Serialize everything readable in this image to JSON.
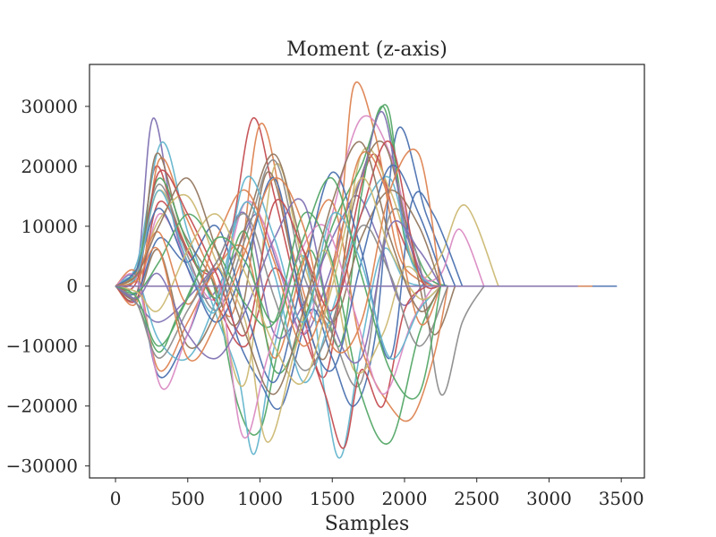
{
  "chart_data": {
    "type": "line",
    "title": "Moment (z-axis)",
    "xlabel": "Samples",
    "ylabel": "",
    "xlim": [
      -180,
      3660
    ],
    "ylim": [
      -32000,
      37000
    ],
    "xticks": [
      0,
      500,
      1000,
      1500,
      2000,
      2500,
      3000,
      3500
    ],
    "yticks": [
      -30000,
      -20000,
      -10000,
      0,
      10000,
      20000,
      30000
    ],
    "xtick_labels": [
      "0",
      "500",
      "1000",
      "1500",
      "2000",
      "2500",
      "3000",
      "3500"
    ],
    "ytick_labels": [
      "−30000",
      "−20000",
      "−10000",
      "0",
      "10000",
      "20000",
      "30000"
    ],
    "grid": false,
    "legend": "none",
    "palette": [
      "#4c72b0",
      "#dd8452",
      "#55a868",
      "#c44e52",
      "#8172b3",
      "#937860",
      "#da8bc3",
      "#8c8c8c",
      "#ccb974",
      "#64b5cd"
    ],
    "series": [
      {
        "color": "#8172b3",
        "x": [
          0,
          150,
          260,
          420,
          620,
          820,
          980,
          1130,
          1300,
          1480,
          1650,
          1820,
          1980,
          2150,
          2250
        ],
        "y": [
          0,
          3000,
          28000,
          9000,
          -2000,
          5000,
          12000,
          3000,
          -8000,
          2000,
          15000,
          8000,
          -3000,
          800,
          0
        ]
      },
      {
        "color": "#c44e52",
        "x": [
          0,
          150,
          280,
          450,
          650,
          800,
          950,
          1100,
          1300,
          1450,
          1600,
          1780,
          1950,
          2100,
          2200
        ],
        "y": [
          0,
          2000,
          20000,
          8000,
          2000,
          9000,
          28000,
          15000,
          -5000,
          -15000,
          5000,
          22000,
          10000,
          2000,
          0
        ]
      },
      {
        "color": "#dd8452",
        "x": [
          0,
          160,
          300,
          480,
          650,
          820,
          1000,
          1200,
          1400,
          1550,
          1650,
          1800,
          1950,
          2100,
          2250
        ],
        "y": [
          0,
          -2000,
          21000,
          12000,
          3000,
          -4000,
          27000,
          8000,
          -6000,
          10000,
          33500,
          25000,
          6000,
          1000,
          0
        ]
      },
      {
        "color": "#55a868",
        "x": [
          0,
          150,
          300,
          450,
          650,
          850,
          1000,
          1150,
          1350,
          1550,
          1700,
          1850,
          2000,
          2150,
          2300
        ],
        "y": [
          0,
          -3000,
          -11000,
          -4000,
          2000,
          -20000,
          -24000,
          -8000,
          6000,
          -10000,
          15000,
          30000,
          12000,
          2000,
          0
        ]
      },
      {
        "color": "#64b5cd",
        "x": [
          0,
          150,
          320,
          500,
          700,
          850,
          960,
          1100,
          1300,
          1450,
          1560,
          1700,
          1850,
          2000,
          2150
        ],
        "y": [
          0,
          4000,
          24000,
          9000,
          -5000,
          -15000,
          -28000,
          -10000,
          5000,
          -18000,
          -28500,
          -10000,
          6000,
          1000,
          0
        ]
      },
      {
        "color": "#4c72b0",
        "x": [
          0,
          150,
          300,
          500,
          700,
          850,
          1000,
          1150,
          1350,
          1500,
          1650,
          1800,
          1950,
          2150,
          2350
        ],
        "y": [
          0,
          1000,
          -15000,
          -8000,
          3000,
          -9000,
          -16000,
          -20000,
          -4000,
          -12000,
          -20000,
          -8000,
          26000,
          12000,
          0
        ]
      },
      {
        "color": "#ccb974",
        "x": [
          0,
          150,
          300,
          500,
          700,
          900,
          1100,
          1300,
          1500,
          1700,
          1900,
          2100,
          2250,
          2420,
          2650
        ],
        "y": [
          0,
          2000,
          16000,
          6000,
          -3000,
          -16000,
          20000,
          4000,
          -6000,
          22000,
          16000,
          2000,
          5000,
          13500,
          0
        ]
      },
      {
        "color": "#da8bc3",
        "x": [
          0,
          150,
          300,
          500,
          700,
          900,
          1100,
          1300,
          1500,
          1700,
          1900,
          2100,
          2250,
          2380,
          2550
        ],
        "y": [
          0,
          -2000,
          12000,
          4000,
          -2000,
          14000,
          6000,
          -8000,
          12000,
          28000,
          22000,
          3000,
          2000,
          9500,
          0
        ]
      },
      {
        "color": "#8c8c8c",
        "x": [
          0,
          150,
          300,
          500,
          700,
          900,
          1100,
          1300,
          1500,
          1700,
          1900,
          2100,
          2250,
          2400,
          2550
        ],
        "y": [
          0,
          3000,
          17000,
          5000,
          -4000,
          8000,
          21000,
          2000,
          -8000,
          -16000,
          12000,
          4000,
          -18000,
          -6000,
          0
        ]
      },
      {
        "color": "#937860",
        "x": [
          0,
          150,
          280,
          450,
          650,
          850,
          1050,
          1250,
          1450,
          1650,
          1850,
          2050,
          2200,
          2350
        ],
        "y": [
          0,
          -1000,
          22000,
          10000,
          2000,
          -6000,
          19000,
          2000,
          -12000,
          14000,
          24000,
          6000,
          -8000,
          0
        ]
      },
      {
        "color": "#dd8452",
        "x": [
          0,
          150,
          300,
          500,
          700,
          900,
          1100,
          1300,
          1500,
          1700,
          1900,
          2050,
          2200,
          2300
        ],
        "y": [
          0,
          2000,
          -14000,
          -6000,
          3000,
          6000,
          -12000,
          4000,
          14000,
          -10000,
          -20000,
          -22000,
          -12000,
          0
        ]
      },
      {
        "color": "#c44e52",
        "x": [
          0,
          150,
          300,
          500,
          700,
          900,
          1100,
          1300,
          1450,
          1580,
          1700,
          1850,
          2000,
          2150
        ],
        "y": [
          0,
          -2000,
          14000,
          6000,
          -3000,
          -10000,
          3000,
          -8000,
          -18000,
          -27000,
          -14000,
          -20000,
          -4000,
          0
        ]
      },
      {
        "color": "#55a868",
        "x": [
          0,
          150,
          300,
          500,
          700,
          900,
          1100,
          1300,
          1500,
          1700,
          1880,
          2000,
          2150
        ],
        "y": [
          0,
          3000,
          18000,
          7000,
          -2000,
          9000,
          -14000,
          -6000,
          10000,
          20000,
          30000,
          8000,
          0
        ]
      },
      {
        "color": "#4c72b0",
        "x": [
          0,
          150,
          300,
          500,
          700,
          900,
          1100,
          1300,
          1500,
          1700,
          1900,
          2050,
          2200,
          2400
        ],
        "y": [
          0,
          -1000,
          8000,
          4000,
          10000,
          -4000,
          -16000,
          2000,
          19000,
          6000,
          -12000,
          14000,
          12000,
          0
        ]
      },
      {
        "color": "#8172b3",
        "x": [
          0,
          150,
          300,
          500,
          700,
          900,
          1100,
          1300,
          1500,
          1700,
          1850,
          2000,
          2150
        ],
        "y": [
          0,
          -3000,
          -6000,
          -2000,
          4000,
          12000,
          -8000,
          -3000,
          8000,
          18000,
          29000,
          10000,
          0
        ]
      },
      {
        "color": "#64b5cd",
        "x": [
          0,
          150,
          300,
          500,
          700,
          900,
          1100,
          1300,
          1500,
          1700,
          1900,
          2050,
          2200
        ],
        "y": [
          0,
          1000,
          -9000,
          -12000,
          -2000,
          14000,
          2000,
          -16000,
          -4000,
          12000,
          18000,
          4000,
          0
        ]
      },
      {
        "color": "#ccb974",
        "x": [
          0,
          150,
          300,
          500,
          700,
          900,
          1050,
          1250,
          1450,
          1650,
          1850,
          2000,
          2150
        ],
        "y": [
          0,
          2000,
          11000,
          15000,
          4000,
          -6000,
          -26000,
          -10000,
          6000,
          -14000,
          -8000,
          3000,
          0
        ]
      },
      {
        "color": "#937860",
        "x": [
          0,
          150,
          300,
          500,
          700,
          900,
          1100,
          1300,
          1500,
          1700,
          1900,
          2100,
          2250
        ],
        "y": [
          0,
          -2000,
          6000,
          -10000,
          -4000,
          10000,
          22000,
          6000,
          -6000,
          8000,
          16000,
          10000,
          0
        ]
      },
      {
        "color": "#da8bc3",
        "x": [
          0,
          150,
          320,
          500,
          700,
          880,
          1050,
          1250,
          1450,
          1650,
          1850,
          2050,
          2200
        ],
        "y": [
          0,
          1000,
          -17000,
          -8000,
          2000,
          -25000,
          -12000,
          4000,
          10000,
          -4000,
          -18000,
          -6000,
          0
        ]
      },
      {
        "color": "#4c72b0",
        "x": [
          0,
          150,
          300,
          500,
          700,
          900,
          1100,
          1300,
          1500,
          1700,
          1900,
          2100,
          2280
        ],
        "y": [
          0,
          3000,
          13000,
          3000,
          -6000,
          4000,
          18000,
          -4000,
          -14000,
          4000,
          20000,
          12000,
          0
        ]
      },
      {
        "color": "#55a868",
        "x": [
          0,
          150,
          300,
          500,
          700,
          900,
          1100,
          1300,
          1500,
          1700,
          1900,
          2100,
          2250
        ],
        "y": [
          0,
          -1000,
          4000,
          12000,
          6000,
          -3000,
          -6000,
          12000,
          4000,
          -18000,
          -26000,
          -8000,
          0
        ]
      },
      {
        "color": "#dd8452",
        "x": [
          0,
          150,
          300,
          500,
          700,
          900,
          1100,
          1300,
          1500,
          1700,
          1900,
          2100,
          2250
        ],
        "y": [
          0,
          2000,
          9000,
          -3000,
          8000,
          16000,
          4000,
          -10000,
          2000,
          22000,
          14000,
          -6000,
          0
        ]
      },
      {
        "color": "#8c8c8c",
        "x": [
          0,
          150,
          300,
          500,
          700,
          900,
          1100,
          1300,
          1500,
          1700,
          1900,
          2100,
          2300
        ],
        "y": [
          0,
          -3000,
          -12000,
          -4000,
          4000,
          12000,
          -2000,
          -14000,
          -6000,
          10000,
          2000,
          -10000,
          0
        ]
      },
      {
        "color": "#c44e52",
        "x": [
          0,
          150,
          300,
          500,
          700,
          900,
          1100,
          1300,
          1500,
          1700,
          1900,
          2100,
          2250
        ],
        "y": [
          0,
          1000,
          19000,
          12000,
          2000,
          -8000,
          14000,
          6000,
          -4000,
          12000,
          24000,
          2000,
          0
        ]
      },
      {
        "color": "#8172b3",
        "x": [
          0,
          150,
          300,
          500,
          700,
          900,
          1100,
          1300,
          1500,
          1700,
          1900,
          2100,
          2250
        ],
        "y": [
          0,
          -2000,
          2000,
          -8000,
          -12000,
          -4000,
          8000,
          14000,
          -6000,
          -12000,
          10000,
          6000,
          0
        ]
      },
      {
        "color": "#64b5cd",
        "x": [
          0,
          150,
          300,
          500,
          700,
          900,
          1100,
          1300,
          1500,
          1700,
          1900,
          2100,
          2250
        ],
        "y": [
          0,
          2000,
          16000,
          4000,
          -4000,
          18000,
          8000,
          -6000,
          12000,
          4000,
          -12000,
          -4000,
          0
        ]
      },
      {
        "color": "#ccb974",
        "x": [
          0,
          150,
          300,
          500,
          700,
          900,
          1100,
          1300,
          1500,
          1700,
          1900,
          2100,
          2250
        ],
        "y": [
          0,
          -1000,
          -4000,
          6000,
          12000,
          2000,
          -10000,
          -16000,
          0,
          18000,
          6000,
          -2000,
          0
        ]
      },
      {
        "color": "#937860",
        "x": [
          0,
          150,
          300,
          500,
          700,
          900,
          1100,
          1300,
          1500,
          1700,
          1900,
          2100,
          2250
        ],
        "y": [
          0,
          2000,
          10000,
          18000,
          6000,
          -8000,
          -18000,
          -4000,
          14000,
          24000,
          8000,
          -4000,
          0
        ]
      },
      {
        "color": "#55a868",
        "x": [
          0,
          150,
          300,
          500,
          700,
          900,
          1100,
          1300,
          1500,
          1700,
          1900,
          2100,
          2250
        ],
        "y": [
          0,
          -2000,
          -10000,
          -2000,
          8000,
          4000,
          -6000,
          8000,
          18000,
          2000,
          -14000,
          -18000,
          0
        ]
      },
      {
        "color": "#dd8452",
        "x": [
          0,
          150,
          300,
          500,
          700,
          900,
          1100,
          1300,
          1500,
          1700,
          1900,
          2100,
          2250
        ],
        "y": [
          0,
          1000,
          6000,
          -12000,
          -6000,
          6000,
          18000,
          10000,
          -10000,
          -6000,
          16000,
          22000,
          0
        ]
      },
      {
        "color": "#4c72b0",
        "x": [
          0,
          500,
          1000,
          1500,
          2000,
          2500,
          3000,
          3470
        ],
        "y": [
          0,
          0,
          0,
          0,
          0,
          0,
          0,
          0
        ]
      },
      {
        "color": "#dd8452",
        "x": [
          0,
          500,
          1000,
          1500,
          2000,
          2500,
          3000,
          3300
        ],
        "y": [
          0,
          0,
          0,
          0,
          0,
          0,
          0,
          0
        ]
      },
      {
        "color": "#8172b3",
        "x": [
          0,
          500,
          1000,
          1500,
          2000,
          2500,
          3000,
          3200
        ],
        "y": [
          0,
          0,
          0,
          0,
          0,
          0,
          0,
          0
        ]
      }
    ]
  }
}
